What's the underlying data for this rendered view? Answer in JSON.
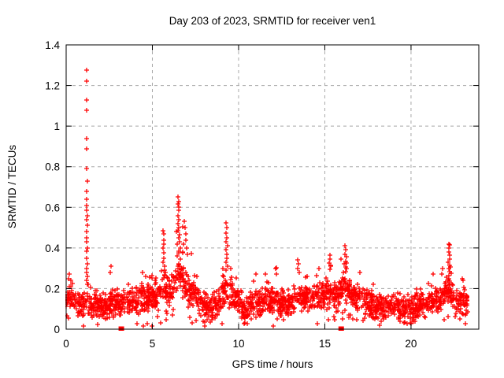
{
  "page": {
    "background": "#ffffff"
  },
  "chart_data": {
    "type": "scatter",
    "title": "Day 203 of 2023, SRMTID for receiver ven1",
    "xlabel": "GPS time / hours",
    "ylabel": "SRMTID / TECUs",
    "xlim": [
      0,
      23.93
    ],
    "ylim": [
      0,
      1.4
    ],
    "xticks": [
      0,
      5,
      10,
      15,
      20
    ],
    "xtick_labels": [
      "0",
      "5",
      "10",
      "15",
      "20"
    ],
    "yticks": [
      0,
      0.2,
      0.4,
      0.6,
      0.8,
      1,
      1.2,
      1.4
    ],
    "ytick_labels": [
      "0",
      "0.2",
      "0.4",
      "0.6",
      "0.8",
      "1",
      "1.2",
      "1.4"
    ],
    "grid": true,
    "grid_style": "dashed",
    "legend": "none",
    "colors": {
      "marker": "#ff0000",
      "grid": "#a8a8a8",
      "axis": "#000000",
      "text": "#000000"
    },
    "series": [
      {
        "name": "srmtid",
        "marker": "plus",
        "outliers": [
          [
            1.19,
            1.275
          ],
          [
            1.19,
            1.22
          ],
          [
            1.2,
            1.13
          ],
          [
            1.2,
            1.08
          ],
          [
            1.18,
            0.94
          ],
          [
            1.21,
            0.89
          ],
          [
            1.19,
            0.79
          ],
          [
            1.22,
            0.73
          ],
          [
            1.2,
            0.68
          ],
          [
            1.18,
            0.64
          ],
          [
            1.21,
            0.61
          ],
          [
            1.19,
            0.585
          ],
          [
            1.22,
            0.56
          ],
          [
            1.2,
            0.54
          ],
          [
            1.23,
            0.51
          ],
          [
            1.18,
            0.48
          ],
          [
            1.21,
            0.45
          ],
          [
            1.19,
            0.43
          ],
          [
            1.22,
            0.4
          ],
          [
            1.2,
            0.385
          ],
          [
            1.17,
            0.35
          ],
          [
            1.23,
            0.32
          ],
          [
            1.19,
            0.3
          ],
          [
            1.21,
            0.28
          ],
          [
            1.24,
            0.26
          ],
          [
            1.18,
            0.24
          ],
          [
            1.25,
            0.22
          ],
          [
            0.2,
            0.27
          ],
          [
            0.15,
            0.25
          ],
          [
            0.28,
            0.24
          ],
          [
            2.62,
            0.31
          ],
          [
            2.58,
            0.28
          ],
          [
            4.42,
            0.28
          ],
          [
            4.6,
            0.26
          ],
          [
            5.62,
            0.485
          ],
          [
            5.66,
            0.47
          ],
          [
            5.64,
            0.44
          ],
          [
            5.68,
            0.42
          ],
          [
            5.63,
            0.4
          ],
          [
            5.67,
            0.375
          ],
          [
            5.65,
            0.35
          ],
          [
            5.61,
            0.33
          ],
          [
            5.69,
            0.31
          ],
          [
            5.72,
            0.29
          ],
          [
            6.5,
            0.65
          ],
          [
            6.52,
            0.63
          ],
          [
            6.49,
            0.615
          ],
          [
            6.53,
            0.6
          ],
          [
            6.51,
            0.585
          ],
          [
            6.47,
            0.56
          ],
          [
            6.55,
            0.54
          ],
          [
            6.5,
            0.52
          ],
          [
            6.54,
            0.5
          ],
          [
            6.48,
            0.485
          ],
          [
            6.56,
            0.465
          ],
          [
            6.52,
            0.45
          ],
          [
            6.58,
            0.43
          ],
          [
            6.46,
            0.42
          ],
          [
            6.6,
            0.4
          ],
          [
            6.55,
            0.385
          ],
          [
            6.44,
            0.36
          ],
          [
            6.62,
            0.345
          ],
          [
            6.85,
            0.53
          ],
          [
            6.88,
            0.5
          ],
          [
            6.92,
            0.47
          ],
          [
            6.95,
            0.44
          ],
          [
            6.82,
            0.42
          ],
          [
            6.98,
            0.4
          ],
          [
            7.05,
            0.37
          ],
          [
            9.28,
            0.525
          ],
          [
            9.31,
            0.5
          ],
          [
            9.26,
            0.475
          ],
          [
            9.33,
            0.45
          ],
          [
            9.29,
            0.43
          ],
          [
            9.35,
            0.41
          ],
          [
            9.27,
            0.39
          ],
          [
            9.32,
            0.37
          ],
          [
            9.3,
            0.35
          ],
          [
            9.25,
            0.33
          ],
          [
            9.36,
            0.31
          ],
          [
            9.29,
            0.29
          ],
          [
            9.55,
            0.3
          ],
          [
            11.0,
            0.27
          ],
          [
            11.55,
            0.27
          ],
          [
            12.15,
            0.3
          ],
          [
            12.18,
            0.27
          ],
          [
            13.42,
            0.34
          ],
          [
            13.47,
            0.32
          ],
          [
            13.44,
            0.3
          ],
          [
            13.5,
            0.28
          ],
          [
            14.65,
            0.3
          ],
          [
            15.28,
            0.365
          ],
          [
            15.32,
            0.345
          ],
          [
            15.26,
            0.325
          ],
          [
            15.34,
            0.31
          ],
          [
            15.3,
            0.295
          ],
          [
            16.18,
            0.41
          ],
          [
            16.22,
            0.39
          ],
          [
            16.16,
            0.37
          ],
          [
            16.24,
            0.355
          ],
          [
            16.2,
            0.335
          ],
          [
            16.14,
            0.32
          ],
          [
            16.26,
            0.3
          ],
          [
            16.19,
            0.285
          ],
          [
            17.02,
            0.28
          ],
          [
            21.3,
            0.27
          ],
          [
            21.85,
            0.3
          ],
          [
            21.8,
            0.27
          ],
          [
            22.18,
            0.42
          ],
          [
            22.24,
            0.415
          ],
          [
            22.21,
            0.4
          ],
          [
            22.19,
            0.38
          ],
          [
            22.25,
            0.365
          ],
          [
            22.22,
            0.345
          ],
          [
            22.17,
            0.33
          ],
          [
            22.26,
            0.315
          ],
          [
            22.2,
            0.3
          ],
          [
            22.23,
            0.285
          ],
          [
            22.21,
            0.265
          ],
          [
            22.18,
            0.25
          ],
          [
            22.24,
            0.235
          ],
          [
            22.22,
            0.22
          ],
          [
            22.95,
            0.25
          ],
          [
            23.0,
            0.24
          ]
        ],
        "band": {
          "seed": 77203,
          "count": 2100,
          "x_start": 0.0,
          "x_end": 23.3,
          "jitter": 0.075,
          "spike_prob": 0.16,
          "dip_prob": 0.07,
          "keys": [
            [
              0.0,
              0.15,
              0.1
            ],
            [
              0.3,
              0.16,
              0.11
            ],
            [
              0.8,
              0.11,
              0.06
            ],
            [
              1.2,
              0.13,
              0.08
            ],
            [
              2.0,
              0.11,
              0.07
            ],
            [
              2.6,
              0.13,
              0.16
            ],
            [
              3.2,
              0.12,
              0.08
            ],
            [
              4.0,
              0.14,
              0.11
            ],
            [
              4.6,
              0.15,
              0.12
            ],
            [
              5.3,
              0.17,
              0.14
            ],
            [
              5.7,
              0.21,
              0.25
            ],
            [
              6.0,
              0.18,
              0.18
            ],
            [
              6.5,
              0.27,
              0.35
            ],
            [
              6.8,
              0.24,
              0.27
            ],
            [
              7.1,
              0.2,
              0.23
            ],
            [
              7.6,
              0.15,
              0.11
            ],
            [
              8.2,
              0.1,
              0.09
            ],
            [
              8.8,
              0.13,
              0.08
            ],
            [
              9.3,
              0.19,
              0.3
            ],
            [
              9.6,
              0.16,
              0.13
            ],
            [
              10.0,
              0.14,
              0.11
            ],
            [
              10.4,
              0.08,
              0.06
            ],
            [
              10.8,
              0.13,
              0.09
            ],
            [
              11.5,
              0.14,
              0.12
            ],
            [
              12.2,
              0.14,
              0.1
            ],
            [
              13.0,
              0.13,
              0.09
            ],
            [
              13.45,
              0.16,
              0.16
            ],
            [
              14.0,
              0.15,
              0.11
            ],
            [
              14.6,
              0.16,
              0.13
            ],
            [
              15.3,
              0.18,
              0.17
            ],
            [
              15.7,
              0.15,
              0.11
            ],
            [
              16.15,
              0.21,
              0.18
            ],
            [
              16.5,
              0.16,
              0.11
            ],
            [
              17.0,
              0.16,
              0.11
            ],
            [
              17.5,
              0.12,
              0.08
            ],
            [
              18.2,
              0.1,
              0.07
            ],
            [
              19.0,
              0.11,
              0.07
            ],
            [
              19.8,
              0.1,
              0.06
            ],
            [
              20.5,
              0.12,
              0.08
            ],
            [
              21.2,
              0.14,
              0.11
            ],
            [
              21.8,
              0.16,
              0.13
            ],
            [
              22.2,
              0.2,
              0.18
            ],
            [
              22.6,
              0.13,
              0.09
            ],
            [
              23.0,
              0.14,
              0.1
            ],
            [
              23.3,
              0.13,
              0.07
            ]
          ]
        }
      },
      {
        "name": "flagged",
        "marker": "filled-square",
        "points": [
          [
            3.2,
            0
          ],
          [
            15.95,
            0
          ]
        ]
      }
    ]
  }
}
